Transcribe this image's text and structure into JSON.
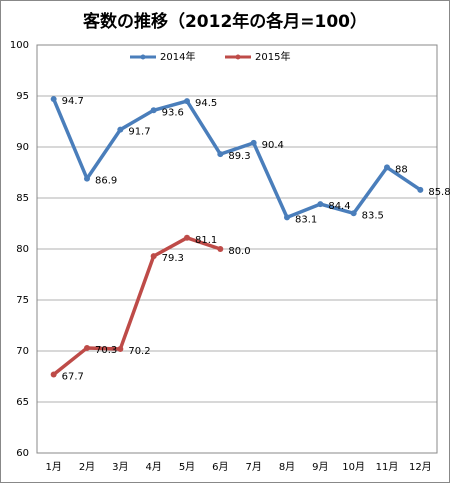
{
  "chart_data": {
    "type": "line",
    "title": "客数の推移（2012年の各月=100）",
    "categories": [
      "1月",
      "2月",
      "3月",
      "4月",
      "5月",
      "6月",
      "7月",
      "8月",
      "9月",
      "10月",
      "11月",
      "12月"
    ],
    "series": [
      {
        "name": "2014年",
        "color": "#4a7ebb",
        "values": [
          94.7,
          86.9,
          91.7,
          93.6,
          94.5,
          89.3,
          90.4,
          83.1,
          84.4,
          83.5,
          88,
          85.8
        ]
      },
      {
        "name": "2015年",
        "color": "#be4b48",
        "values": [
          67.7,
          70.3,
          70.2,
          79.3,
          81.1,
          80.0,
          null,
          null,
          null,
          null,
          null,
          null
        ],
        "value_labels": [
          "67.7",
          "70.3",
          "70.2",
          "79.3",
          "81.1",
          "80.0",
          null,
          null,
          null,
          null,
          null,
          null
        ]
      }
    ],
    "ylim": [
      60,
      100
    ],
    "yticks": [
      60,
      65,
      70,
      75,
      80,
      85,
      90,
      95,
      100
    ],
    "grid": true,
    "legend": "top"
  }
}
